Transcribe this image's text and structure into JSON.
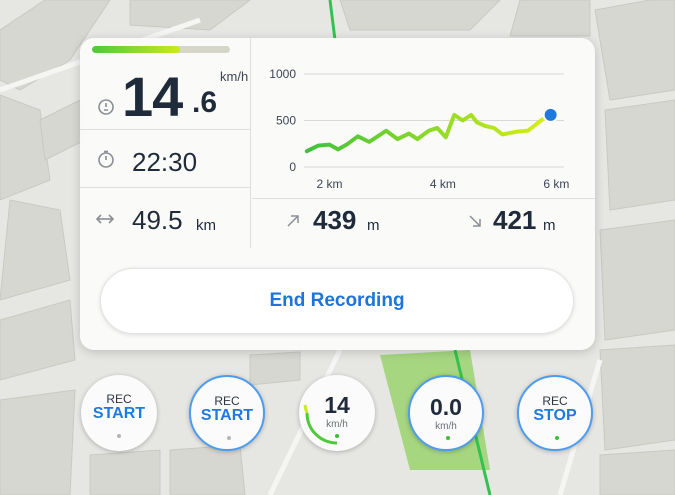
{
  "colors": {
    "accent_blue": "#1e74d8",
    "speed_green": "#4fc83a",
    "speed_lime": "#c9ea1e",
    "text_dark": "#1f2b3a",
    "current_point": "#1f7ae0"
  },
  "speed": {
    "integer": "14",
    "decimal": ".6",
    "unit": "km/h",
    "bar_fraction": 0.64,
    "icon": "gauge-icon"
  },
  "time": {
    "value": "22:30",
    "icon": "clock-icon"
  },
  "distance": {
    "value": "49.5",
    "unit": "km",
    "icon": "horizontal-arrows-icon"
  },
  "elevation": {
    "ascent_value": "439",
    "ascent_unit": "m",
    "ascent_icon": "arrow-up-right-icon",
    "descent_value": "421",
    "descent_unit": "m",
    "descent_icon": "arrow-down-right-icon"
  },
  "chart_data": {
    "type": "line",
    "title": "",
    "xlabel": "",
    "ylabel": "",
    "y_tick_labels": [
      "1000",
      "500",
      "0"
    ],
    "x_tick_labels": [
      "2 km",
      "4 km",
      "6 km"
    ],
    "x_ticks": [
      2,
      4,
      6
    ],
    "y_ticks": [
      1000,
      500,
      0
    ],
    "xlim": [
      1.55,
      6.1
    ],
    "ylim": [
      0,
      1000
    ],
    "grid": true,
    "series": [
      {
        "x": [
          1.6,
          1.8,
          2.0,
          2.15,
          2.3,
          2.5,
          2.7,
          2.85,
          3.0,
          3.2,
          3.4,
          3.55,
          3.75,
          3.9,
          4.05,
          4.2,
          4.35,
          4.5,
          4.6,
          4.75,
          4.9,
          5.05,
          5.3,
          5.5,
          5.75,
          5.85
        ],
        "y": [
          170,
          230,
          240,
          190,
          240,
          330,
          270,
          330,
          390,
          300,
          360,
          300,
          390,
          420,
          320,
          560,
          500,
          560,
          480,
          440,
          420,
          350,
          380,
          390,
          510,
          540
        ]
      }
    ],
    "current_point": {
      "x": 5.9,
      "y": 560
    }
  },
  "end_button": {
    "label": "End Recording"
  },
  "bottom_buttons": [
    {
      "top": "REC",
      "main": "START"
    },
    {
      "top": "REC",
      "main": "START"
    },
    {
      "num": "14",
      "unit": "km/h"
    },
    {
      "num": "0.0",
      "unit": "km/h"
    },
    {
      "top": "REC",
      "main": "STOP"
    }
  ]
}
